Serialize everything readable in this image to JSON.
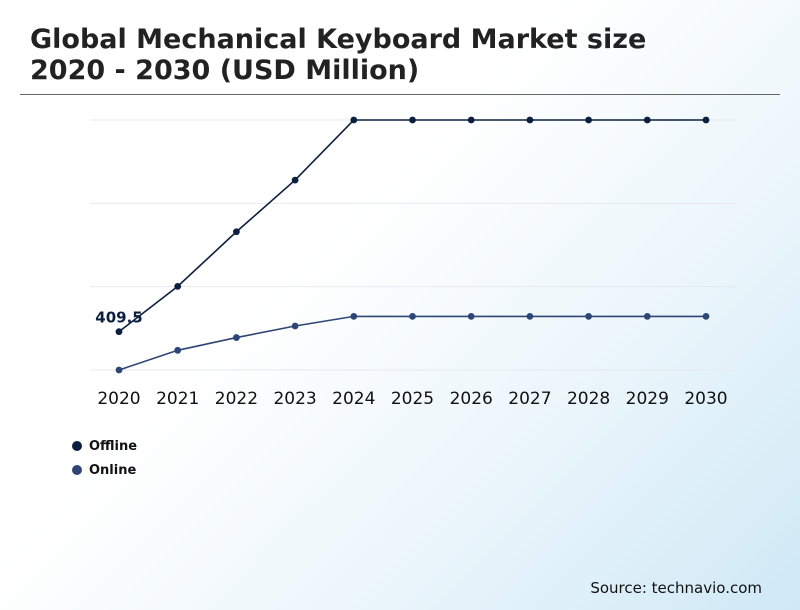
{
  "chart_data": {
    "type": "line",
    "title_lines": [
      "Global Mechanical Keyboard Market size",
      "2020 - 2030 (USD Million)"
    ],
    "categories": [
      "2020",
      "2021",
      "2022",
      "2023",
      "2024",
      "2025",
      "2026",
      "2027",
      "2028",
      "2029",
      "2030"
    ],
    "series": [
      {
        "name": "Offline",
        "color": "#0d1f40",
        "values": [
          409.5,
          598,
          825,
          1040,
          1290,
          1290,
          1290,
          1290,
          1290,
          1290,
          1290
        ]
      },
      {
        "name": "Online",
        "color": "#2e4675",
        "values": [
          250,
          332,
          385,
          433,
          473,
          473,
          473,
          473,
          473,
          473,
          473
        ]
      }
    ],
    "data_labels": [
      {
        "series": 0,
        "index": 0,
        "text": "409.5"
      }
    ],
    "ylim": [
      250,
      1290
    ],
    "grid": true,
    "legend_position": "bottom-left"
  },
  "source": "Source: technavio.com"
}
